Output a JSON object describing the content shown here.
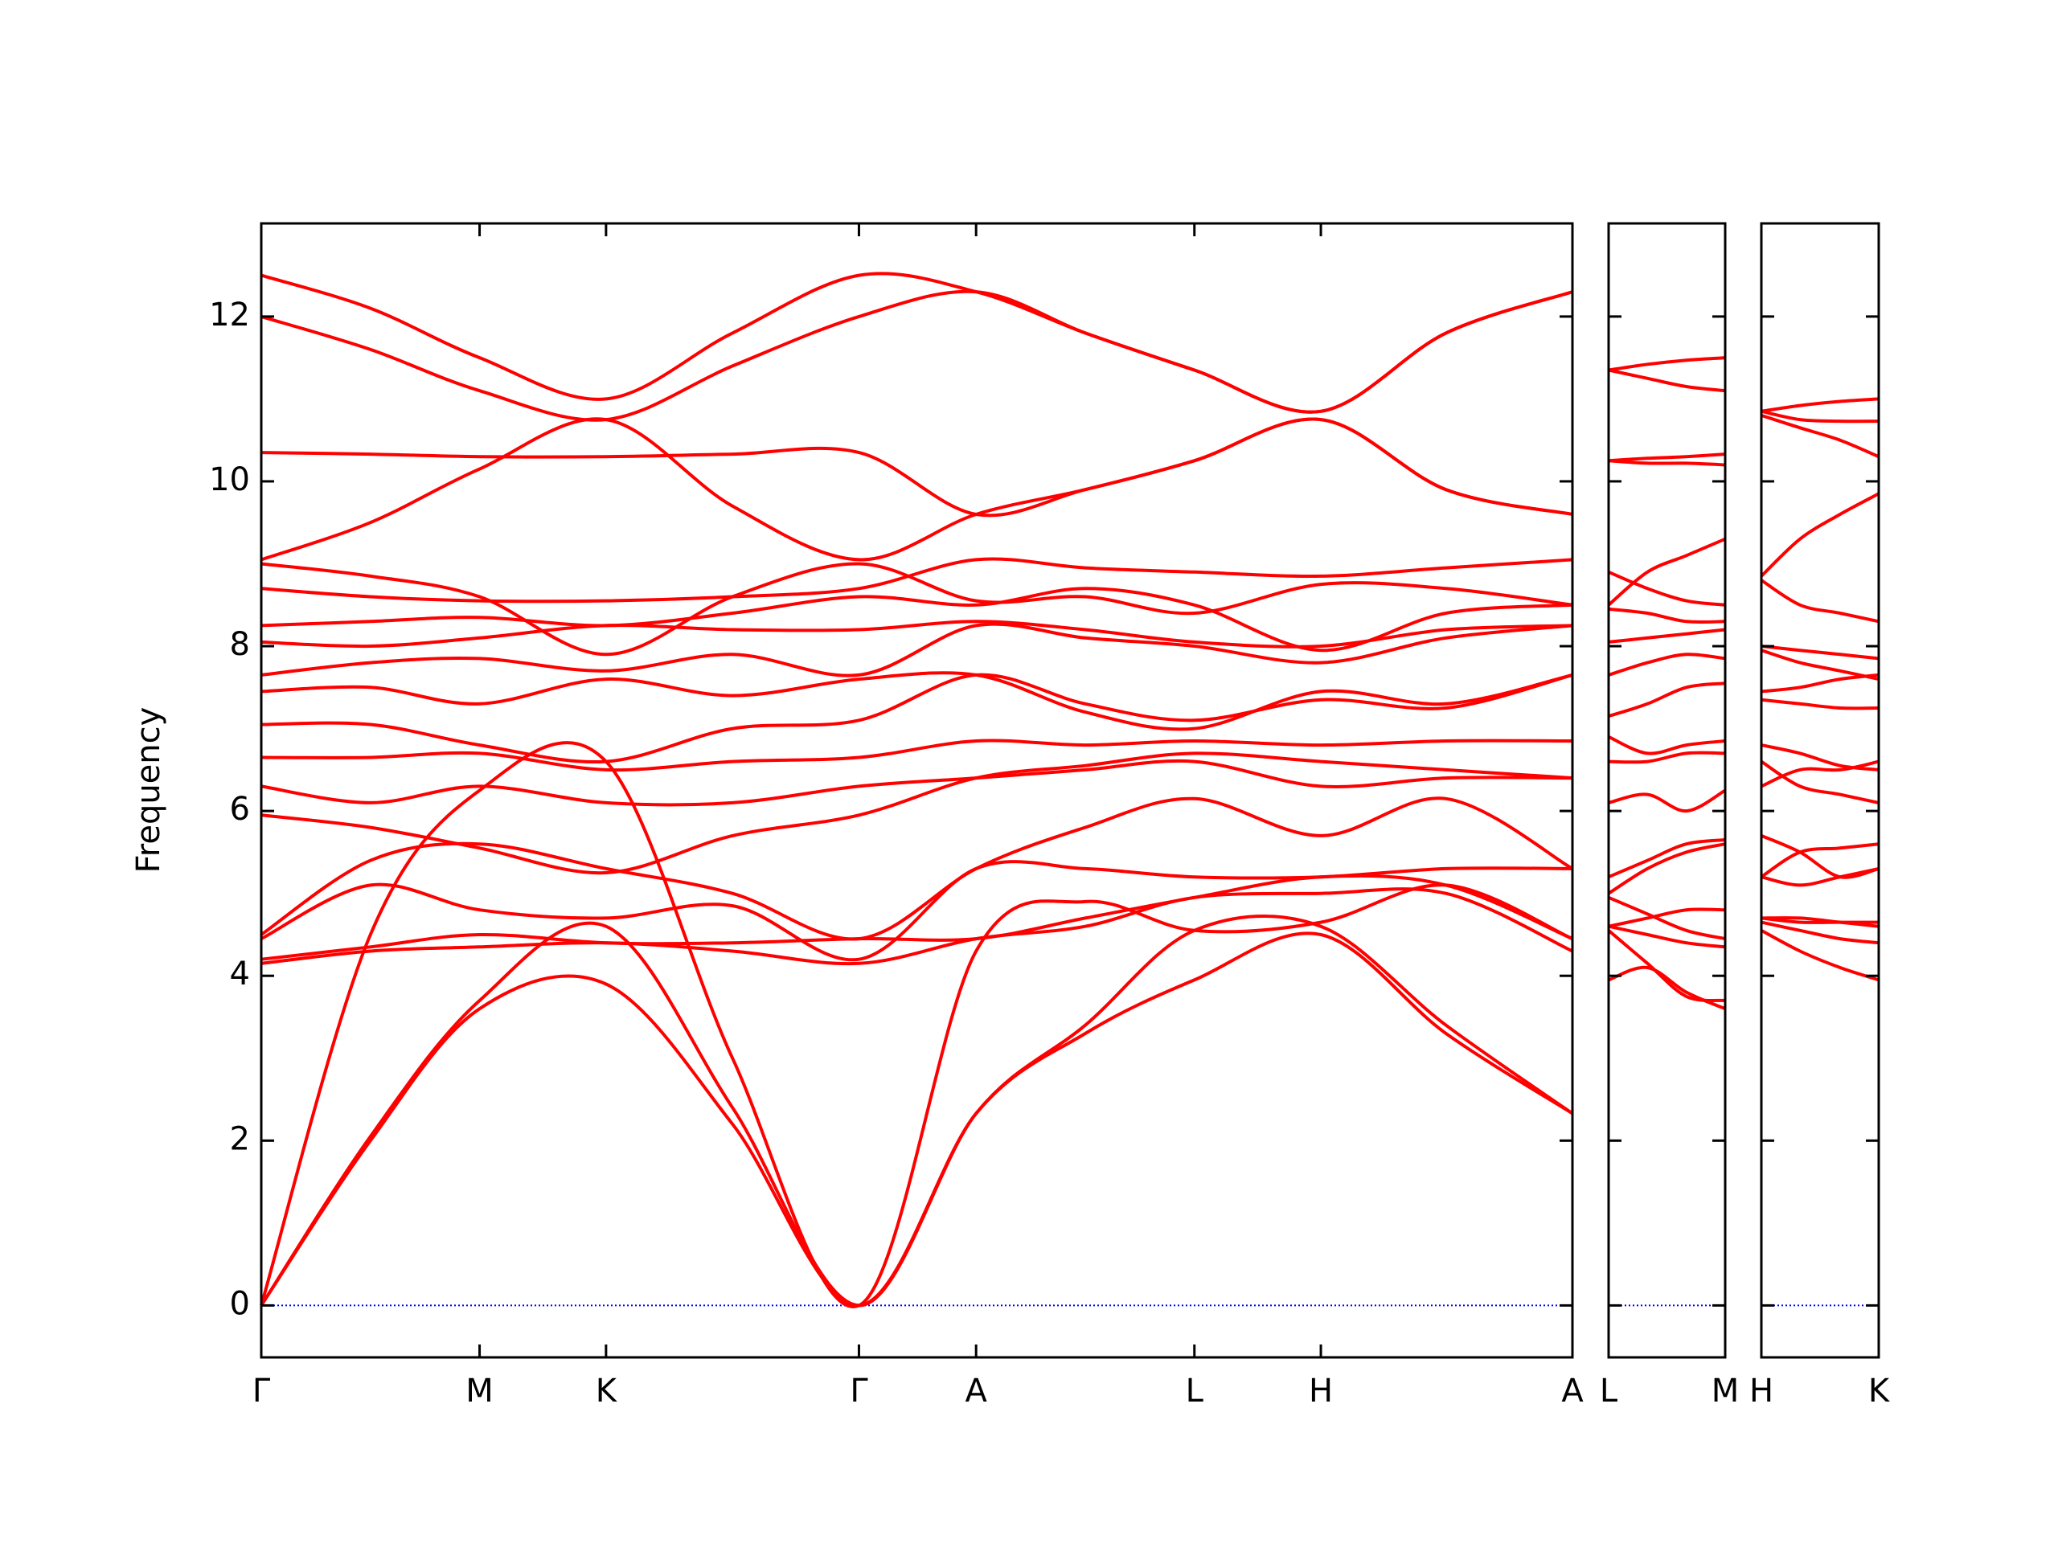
{
  "chart_data": [
    {
      "type": "line",
      "ylabel": "Frequency",
      "color": "#ff0000",
      "zero_line_color": "#0000ff",
      "xlim": [
        0,
        9.85
      ],
      "ylim": [
        -0.63,
        13.13
      ],
      "yticks": [
        0,
        2,
        4,
        6,
        8,
        10,
        12
      ],
      "xticks": [
        {
          "value": 0,
          "label": "Γ"
        },
        {
          "value": 1.64,
          "label": "M"
        },
        {
          "value": 2.59,
          "label": "K"
        },
        {
          "value": 4.49,
          "label": "Γ"
        },
        {
          "value": 5.37,
          "label": "A"
        },
        {
          "value": 7.01,
          "label": "L"
        },
        {
          "value": 7.96,
          "label": "H"
        },
        {
          "value": 9.85,
          "label": "A"
        }
      ],
      "x": [
        0,
        0.82,
        1.64,
        2.59,
        3.54,
        4.49,
        5.37,
        6.19,
        7.01,
        7.96,
        8.9,
        9.85
      ],
      "series": [
        {
          "values": [
            0,
            2.0,
            3.6,
            3.9,
            2.2,
            0,
            2.33,
            3.3,
            3.95,
            4.5,
            3.3,
            2.33
          ]
        },
        {
          "values": [
            0,
            2.05,
            3.7,
            4.6,
            2.4,
            0,
            2.33,
            3.4,
            4.55,
            4.6,
            3.4,
            2.33
          ]
        },
        {
          "values": [
            0,
            4.5,
            6.25,
            6.6,
            3.0,
            0,
            4.3,
            4.9,
            4.55,
            4.65,
            5.1,
            4.45
          ]
        },
        {
          "values": [
            4.15,
            4.3,
            4.35,
            4.4,
            4.3,
            4.15,
            4.45,
            4.6,
            4.95,
            5.0,
            5.0,
            4.3
          ]
        },
        {
          "values": [
            4.2,
            4.35,
            4.5,
            4.4,
            4.4,
            4.45,
            4.45,
            4.7,
            4.95,
            5.2,
            5.1,
            4.45
          ]
        },
        {
          "values": [
            4.45,
            5.1,
            4.8,
            4.7,
            4.85,
            4.2,
            5.3,
            5.3,
            5.2,
            5.2,
            5.3,
            5.3
          ]
        },
        {
          "values": [
            4.5,
            5.4,
            5.6,
            5.3,
            5.0,
            4.45,
            5.3,
            5.8,
            6.15,
            5.7,
            6.15,
            5.3
          ]
        },
        {
          "values": [
            5.95,
            5.8,
            5.55,
            5.25,
            5.7,
            5.95,
            6.4,
            6.55,
            6.7,
            6.6,
            6.5,
            6.4
          ]
        },
        {
          "values": [
            6.3,
            6.1,
            6.3,
            6.1,
            6.1,
            6.3,
            6.4,
            6.5,
            6.6,
            6.3,
            6.4,
            6.4
          ]
        },
        {
          "values": [
            6.65,
            6.65,
            6.7,
            6.5,
            6.6,
            6.65,
            6.85,
            6.8,
            6.85,
            6.8,
            6.85,
            6.85
          ]
        },
        {
          "values": [
            7.05,
            7.05,
            6.8,
            6.6,
            7.0,
            7.1,
            7.65,
            7.3,
            7.1,
            7.35,
            7.25,
            7.65
          ]
        },
        {
          "values": [
            7.45,
            7.5,
            7.3,
            7.6,
            7.4,
            7.6,
            7.65,
            7.2,
            7.0,
            7.45,
            7.3,
            7.65
          ]
        },
        {
          "values": [
            7.65,
            7.8,
            7.85,
            7.7,
            7.9,
            7.65,
            8.25,
            8.1,
            8.0,
            7.8,
            8.1,
            8.25
          ]
        },
        {
          "values": [
            8.05,
            8.0,
            8.1,
            8.25,
            8.2,
            8.2,
            8.3,
            8.2,
            8.05,
            8.0,
            8.2,
            8.25
          ]
        },
        {
          "values": [
            8.25,
            8.3,
            8.35,
            8.25,
            8.4,
            8.6,
            8.5,
            8.7,
            8.5,
            7.95,
            8.4,
            8.5
          ]
        },
        {
          "values": [
            8.7,
            8.6,
            8.55,
            8.55,
            8.6,
            8.7,
            9.05,
            8.95,
            8.9,
            8.85,
            8.95,
            9.05
          ]
        },
        {
          "values": [
            9.0,
            8.85,
            8.6,
            7.9,
            8.6,
            9.0,
            8.55,
            8.6,
            8.4,
            8.75,
            8.7,
            8.5
          ]
        },
        {
          "values": [
            9.05,
            9.5,
            10.15,
            10.75,
            9.7,
            9.05,
            9.6,
            9.9,
            10.25,
            10.75,
            9.9,
            9.6
          ]
        },
        {
          "values": [
            10.35,
            10.33,
            10.3,
            10.3,
            10.33,
            10.35,
            9.6,
            9.9,
            10.25,
            10.75,
            9.9,
            9.6
          ]
        },
        {
          "values": [
            12.0,
            11.6,
            11.1,
            10.75,
            11.4,
            12.0,
            12.3,
            11.8,
            11.35,
            10.85,
            11.8,
            12.3
          ]
        },
        {
          "values": [
            12.5,
            12.1,
            11.5,
            11.0,
            11.8,
            12.5,
            12.3,
            11.8,
            11.35,
            10.85,
            11.8,
            12.3
          ]
        }
      ]
    },
    {
      "type": "line",
      "color": "#ff0000",
      "zero_line_color": "#0000ff",
      "xlim": [
        0,
        0.87
      ],
      "ylim": [
        -0.63,
        13.13
      ],
      "xticks": [
        {
          "value": 0,
          "label": "L"
        },
        {
          "value": 0.87,
          "label": "M"
        }
      ],
      "x": [
        0,
        0.29,
        0.58,
        0.87
      ],
      "series": [
        {
          "values": [
            3.95,
            4.1,
            3.8,
            3.6
          ]
        },
        {
          "values": [
            4.55,
            4.15,
            3.75,
            3.7
          ]
        },
        {
          "values": [
            4.6,
            4.5,
            4.4,
            4.35
          ]
        },
        {
          "values": [
            4.6,
            4.7,
            4.8,
            4.8
          ]
        },
        {
          "values": [
            4.95,
            4.75,
            4.55,
            4.45
          ]
        },
        {
          "values": [
            5.0,
            5.3,
            5.5,
            5.6
          ]
        },
        {
          "values": [
            5.2,
            5.4,
            5.6,
            5.65
          ]
        },
        {
          "values": [
            6.1,
            6.2,
            6.0,
            6.25
          ]
        },
        {
          "values": [
            6.6,
            6.6,
            6.7,
            6.7
          ]
        },
        {
          "values": [
            6.9,
            6.7,
            6.8,
            6.85
          ]
        },
        {
          "values": [
            7.15,
            7.3,
            7.5,
            7.55
          ]
        },
        {
          "values": [
            7.65,
            7.8,
            7.9,
            7.85
          ]
        },
        {
          "values": [
            8.05,
            8.1,
            8.15,
            8.2
          ]
        },
        {
          "values": [
            8.45,
            8.4,
            8.3,
            8.3
          ]
        },
        {
          "values": [
            8.9,
            8.7,
            8.55,
            8.5
          ]
        },
        {
          "values": [
            8.5,
            8.9,
            9.1,
            9.3
          ]
        },
        {
          "values": [
            10.25,
            10.22,
            10.22,
            10.2
          ]
        },
        {
          "values": [
            10.25,
            10.28,
            10.3,
            10.33
          ]
        },
        {
          "values": [
            11.35,
            11.25,
            11.15,
            11.1
          ]
        },
        {
          "values": [
            11.35,
            11.42,
            11.47,
            11.5
          ]
        }
      ]
    },
    {
      "type": "line",
      "color": "#ff0000",
      "zero_line_color": "#0000ff",
      "xlim": [
        0,
        0.88
      ],
      "ylim": [
        -0.63,
        13.13
      ],
      "xticks": [
        {
          "value": 0,
          "label": "H"
        },
        {
          "value": 0.88,
          "label": "K"
        }
      ],
      "x": [
        0,
        0.29,
        0.59,
        0.88
      ],
      "series": [
        {
          "values": [
            4.55,
            4.3,
            4.1,
            3.95
          ]
        },
        {
          "values": [
            4.65,
            4.55,
            4.45,
            4.4
          ]
        },
        {
          "values": [
            4.7,
            4.65,
            4.65,
            4.65
          ]
        },
        {
          "values": [
            4.7,
            4.7,
            4.65,
            4.6
          ]
        },
        {
          "values": [
            5.2,
            5.1,
            5.2,
            5.3
          ]
        },
        {
          "values": [
            5.2,
            5.5,
            5.55,
            5.6
          ]
        },
        {
          "values": [
            5.7,
            5.5,
            5.2,
            5.3
          ]
        },
        {
          "values": [
            6.3,
            6.5,
            6.5,
            6.6
          ]
        },
        {
          "values": [
            6.6,
            6.3,
            6.2,
            6.1
          ]
        },
        {
          "values": [
            6.8,
            6.7,
            6.55,
            6.5
          ]
        },
        {
          "values": [
            7.35,
            7.3,
            7.25,
            7.25
          ]
        },
        {
          "values": [
            7.45,
            7.5,
            7.6,
            7.65
          ]
        },
        {
          "values": [
            7.95,
            7.8,
            7.7,
            7.6
          ]
        },
        {
          "values": [
            8.0,
            7.95,
            7.9,
            7.85
          ]
        },
        {
          "values": [
            8.8,
            8.5,
            8.4,
            8.3
          ]
        },
        {
          "values": [
            8.85,
            9.3,
            9.6,
            9.85
          ]
        },
        {
          "values": [
            10.85,
            10.75,
            10.73,
            10.73
          ]
        },
        {
          "values": [
            10.8,
            10.65,
            10.5,
            10.3
          ]
        },
        {
          "values": [
            10.85,
            10.92,
            10.97,
            11.0
          ]
        }
      ]
    }
  ]
}
